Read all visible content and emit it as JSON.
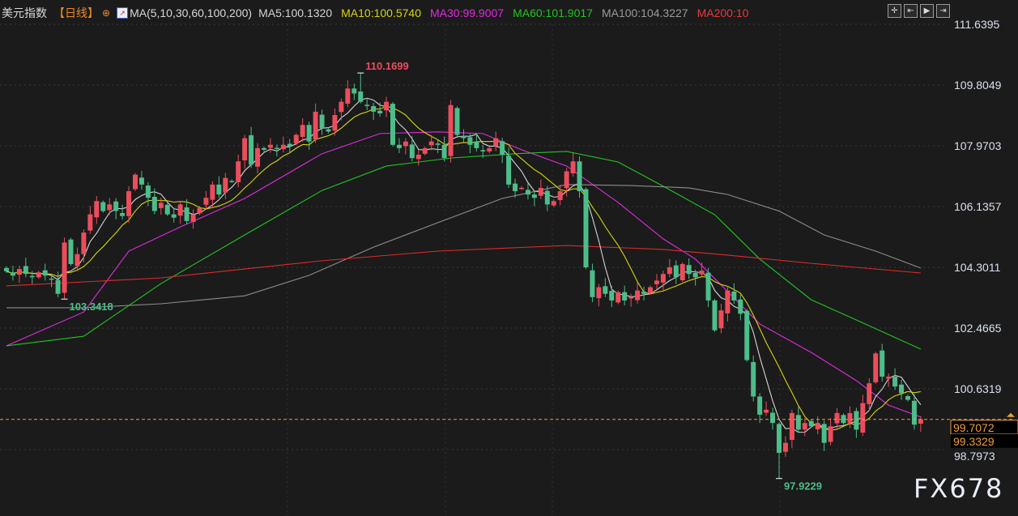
{
  "header": {
    "symbol": "美元指数",
    "period": "【日线】",
    "ma_params": "MA(5,10,30,60,100,200)",
    "ma_values": [
      {
        "label": "MA5:100.1320",
        "color": "#d4d4d4"
      },
      {
        "label": "MA10:100.5740",
        "color": "#d6d60c"
      },
      {
        "label": "MA30:99.9007",
        "color": "#e02ce0"
      },
      {
        "label": "MA60:101.9017",
        "color": "#22c422"
      },
      {
        "label": "MA100:104.3227",
        "color": "#9a9a9a"
      },
      {
        "label": "MA200:10",
        "color": "#e83a3a"
      }
    ]
  },
  "toolbar": [
    "crosshair-icon",
    "zoom-in-icon",
    "play-icon",
    "exit-icon"
  ],
  "watermark": "FX678",
  "chart_data": {
    "type": "candlestick",
    "title": "美元指数",
    "colors": {
      "up": "#ec4d5c",
      "down": "#4dbd8a",
      "last_price": "#f0a030"
    },
    "ylim": [
      97.5,
      111.95
    ],
    "ytick_labels": [
      "111.6395",
      "109.8049",
      "107.9703",
      "106.1357",
      "104.3011",
      "102.4665",
      "100.6319",
      "98.7973"
    ],
    "grid": true,
    "close": [
      104.18,
      104.05,
      104.25,
      104.1,
      104.0,
      104.15,
      104.05,
      103.95,
      103.5,
      105.05,
      104.4,
      104.7,
      105.35,
      105.9,
      106.3,
      106.0,
      106.2,
      106.0,
      105.85,
      106.6,
      107.1,
      106.8,
      106.4,
      106.0,
      106.25,
      105.9,
      105.8,
      106.2,
      105.7,
      105.9,
      106.1,
      106.4,
      106.8,
      106.5,
      107.0,
      106.9,
      107.5,
      108.2,
      107.4,
      107.9,
      107.85,
      108.0,
      107.9,
      108.0,
      107.95,
      108.3,
      108.6,
      108.1,
      109.0,
      108.5,
      108.4,
      108.9,
      109.3,
      109.7,
      109.55,
      109.3,
      109.2,
      109.0,
      108.95,
      109.3,
      108.0,
      107.9,
      108.1,
      107.6,
      107.7,
      107.9,
      108.1,
      108.0,
      107.6,
      109.2,
      108.3,
      108.2,
      108.0,
      107.9,
      107.8,
      107.9,
      108.2,
      107.7,
      106.8,
      106.6,
      106.7,
      106.5,
      106.4,
      106.7,
      106.2,
      106.3,
      106.6,
      107.2,
      107.5,
      106.6,
      104.3,
      103.4,
      103.7,
      103.5,
      103.3,
      103.55,
      103.3,
      103.4,
      103.6,
      103.5,
      103.7,
      103.9,
      104.1,
      104.3,
      104.0,
      104.4,
      104.1,
      104.0,
      104.2,
      103.3,
      102.4,
      103.0,
      103.6,
      103.3,
      102.9,
      101.5,
      100.4,
      99.85,
      100.0,
      99.6,
      98.7,
      99.0,
      99.9,
      99.4,
      99.6,
      99.5,
      99.6,
      99.0,
      99.5,
      99.9,
      99.6,
      99.9,
      99.4,
      100.2,
      100.8,
      101.7,
      101.0,
      101.0,
      100.7,
      100.5,
      100.3,
      99.55,
      99.71
    ],
    "annotations": [
      {
        "index": 9,
        "label": "103.3418",
        "value": 103.3418,
        "kind": "low",
        "color": "#4dbd8a"
      },
      {
        "index": 55,
        "label": "110.1699",
        "value": 110.1699,
        "kind": "high",
        "color": "#ec4d5c"
      },
      {
        "index": 120,
        "label": "97.9229",
        "value": 97.9229,
        "kind": "low",
        "color": "#4dbd8a"
      }
    ],
    "last_price": {
      "label": "99.7072",
      "value": 99.7072
    },
    "second_price": {
      "label": "99.3329"
    },
    "moving_averages": [
      {
        "name": "MA30",
        "color": "#e02ce0",
        "points": [
          [
            0,
            101.93
          ],
          [
            12,
            102.95
          ],
          [
            19,
            104.79
          ],
          [
            27,
            105.52
          ],
          [
            37,
            106.38
          ],
          [
            49,
            107.73
          ],
          [
            58,
            108.34
          ],
          [
            67,
            108.39
          ],
          [
            74,
            108.34
          ],
          [
            80,
            107.85
          ],
          [
            87,
            107.36
          ],
          [
            95,
            106.26
          ],
          [
            102,
            105.16
          ],
          [
            107,
            104.55
          ],
          [
            112,
            103.57
          ],
          [
            117,
            102.59
          ],
          [
            125,
            101.73
          ],
          [
            132,
            100.88
          ],
          [
            137,
            100.14
          ],
          [
            142,
            99.78
          ]
        ]
      },
      {
        "name": "MA60",
        "color": "#22c422",
        "points": [
          [
            0,
            101.93
          ],
          [
            12,
            102.22
          ],
          [
            24,
            103.81
          ],
          [
            37,
            105.28
          ],
          [
            49,
            106.62
          ],
          [
            59,
            107.36
          ],
          [
            69,
            107.6
          ],
          [
            79,
            107.73
          ],
          [
            87,
            107.8
          ],
          [
            95,
            107.48
          ],
          [
            102,
            106.75
          ],
          [
            110,
            105.89
          ],
          [
            117,
            104.55
          ],
          [
            125,
            103.32
          ],
          [
            132,
            102.71
          ],
          [
            142,
            101.83
          ]
        ]
      },
      {
        "name": "MA100",
        "color": "#8c8c8c",
        "points": [
          [
            0,
            103.08
          ],
          [
            12,
            103.08
          ],
          [
            24,
            103.2
          ],
          [
            37,
            103.44
          ],
          [
            47,
            104.06
          ],
          [
            57,
            104.91
          ],
          [
            67,
            105.65
          ],
          [
            77,
            106.38
          ],
          [
            87,
            106.8
          ],
          [
            97,
            106.77
          ],
          [
            106,
            106.7
          ],
          [
            112,
            106.5
          ],
          [
            120,
            106.0
          ],
          [
            127,
            105.28
          ],
          [
            135,
            104.79
          ],
          [
            142,
            104.28
          ]
        ]
      },
      {
        "name": "MA200",
        "color": "#e02a2a",
        "points": [
          [
            0,
            103.74
          ],
          [
            24,
            103.98
          ],
          [
            49,
            104.5
          ],
          [
            67,
            104.79
          ],
          [
            87,
            104.96
          ],
          [
            102,
            104.84
          ],
          [
            112,
            104.67
          ],
          [
            125,
            104.42
          ],
          [
            142,
            104.13
          ]
        ]
      }
    ]
  }
}
